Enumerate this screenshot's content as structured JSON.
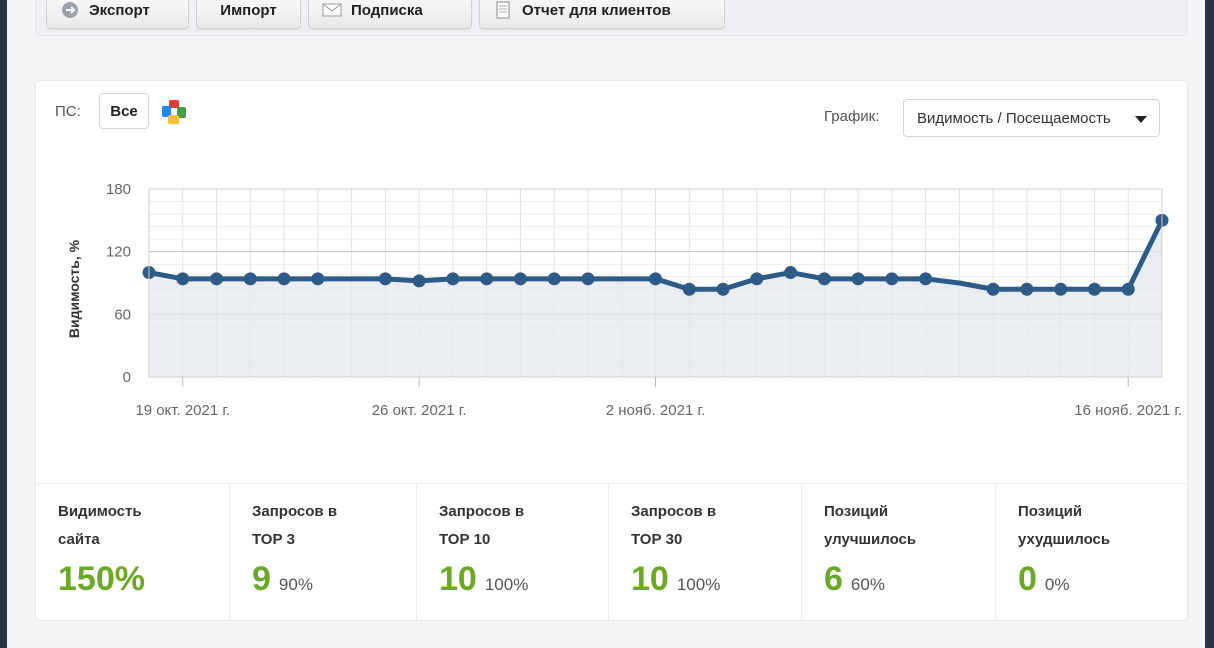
{
  "toolbar": {
    "buttons": [
      {
        "label": "Экспорт",
        "icon": "export-icon"
      },
      {
        "label": "Импорт",
        "icon": ""
      },
      {
        "label": "Подписка",
        "icon": "envelope-icon"
      },
      {
        "label": "Отчет для клиентов",
        "icon": "document-icon"
      }
    ]
  },
  "filters": {
    "ps_label": "ПС:",
    "ps_all_label": "Все",
    "graph_label": "График:",
    "graph_selected": "Видимость / Посещаемость"
  },
  "colors": {
    "accent_green": "#6aa826",
    "line_blue": "#2e5a87",
    "area_fill": "#e3e8ef"
  },
  "chart_data": {
    "type": "area",
    "ylabel": "Видимость, %",
    "ylim": [
      0,
      180
    ],
    "yticks": [
      0,
      60,
      120,
      180
    ],
    "xtick_labels": [
      "19 окт. 2021 г.",
      "26 окт. 2021 г.",
      "2 нояб. 2021 г.",
      "16 нояб. 2021 г."
    ],
    "xtick_days": [
      0,
      7,
      14,
      28
    ],
    "x_range_days": [
      -1,
      29
    ],
    "grid": true,
    "series": [
      {
        "values": [
          [
            -1,
            100
          ],
          [
            0,
            94
          ],
          [
            1,
            94
          ],
          [
            2,
            94
          ],
          [
            3,
            94
          ],
          [
            4,
            94
          ],
          [
            6,
            94
          ],
          [
            7,
            92
          ],
          [
            8,
            94
          ],
          [
            9,
            94
          ],
          [
            10,
            94
          ],
          [
            11,
            94
          ],
          [
            12,
            94
          ],
          [
            14,
            94
          ],
          [
            15,
            84
          ],
          [
            16,
            84
          ],
          [
            17,
            94
          ],
          [
            18,
            100
          ],
          [
            19,
            94
          ],
          [
            20,
            94
          ],
          [
            21,
            94
          ],
          [
            22,
            94
          ],
          [
            23,
            90
          ],
          [
            24,
            84
          ],
          [
            25,
            84
          ],
          [
            26,
            84
          ],
          [
            27,
            84
          ],
          [
            28,
            84
          ],
          [
            29,
            150
          ]
        ],
        "markers_hidden_at": [
          23
        ]
      }
    ]
  },
  "stats": [
    {
      "label": "Видимость\nсайта",
      "value": "150%",
      "pct": ""
    },
    {
      "label": "Запросов в\nТОР 3",
      "value": "9",
      "pct": "90%"
    },
    {
      "label": "Запросов в\nТОР 10",
      "value": "10",
      "pct": "100%"
    },
    {
      "label": "Запросов в\nТОР 30",
      "value": "10",
      "pct": "100%"
    },
    {
      "label": "Позиций\nулучшилось",
      "value": "6",
      "pct": "60%"
    },
    {
      "label": "Позиций\nухудшилось",
      "value": "0",
      "pct": "0%"
    }
  ]
}
